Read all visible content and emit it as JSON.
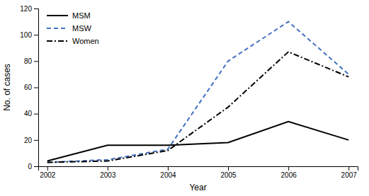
{
  "chart_data": {
    "type": "line",
    "x_label": "Year",
    "y_label": "No. of cases",
    "x": [
      2002,
      2003,
      2004,
      2005,
      2006,
      2007
    ],
    "series": [
      {
        "name": "MSM",
        "color": "#000000",
        "line_style": "solid",
        "values": [
          4,
          16,
          16,
          18,
          34,
          20
        ]
      },
      {
        "name": "MSW",
        "color": "#4472C4",
        "line_style": "dashed",
        "values": [
          3,
          5,
          13,
          80,
          110,
          70
        ]
      },
      {
        "name": "Women",
        "color": "#000000",
        "line_style": "dashdot",
        "values": [
          3,
          4,
          12,
          45,
          87,
          68
        ]
      }
    ],
    "xlim": [
      2001.85,
      2007.15
    ],
    "xticks": [
      2002,
      2003,
      2004,
      2005,
      2006,
      2007
    ],
    "ylim": [
      0,
      120
    ],
    "yticks": [
      0,
      20,
      40,
      60,
      80,
      100,
      120
    ],
    "grid": false,
    "legend": "upper left"
  }
}
